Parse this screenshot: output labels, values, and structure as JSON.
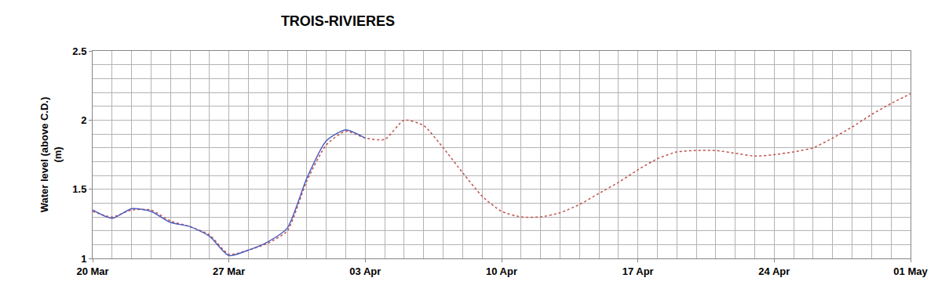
{
  "chart_data": {
    "type": "line",
    "title": "TROIS-RIVIERES",
    "y_label": "Water level (above C.D.)\n(m)",
    "categories": [
      "20 Mar",
      null,
      null,
      null,
      null,
      null,
      null,
      "27 Mar",
      null,
      null,
      null,
      null,
      null,
      null,
      "03 Apr",
      null,
      null,
      null,
      null,
      null,
      null,
      "10 Apr",
      null,
      null,
      null,
      null,
      null,
      null,
      "17 Apr",
      null,
      null,
      null,
      null,
      null,
      null,
      "24 Apr",
      null,
      null,
      null,
      null,
      null,
      null,
      "01 May"
    ],
    "series": [
      {
        "color": "#c0504d",
        "line_style": "dot",
        "values": [
          1.34,
          1.3,
          1.35,
          1.35,
          1.27,
          1.23,
          1.17,
          1.03,
          1.06,
          1.11,
          1.2,
          1.56,
          1.82,
          1.92,
          1.87,
          1.86,
          2.0,
          1.96,
          1.8,
          1.62,
          1.45,
          1.34,
          1.3,
          1.3,
          1.33,
          1.39,
          1.47,
          1.55,
          1.64,
          1.72,
          1.77,
          1.78,
          1.78,
          1.76,
          1.74,
          1.75,
          1.77,
          1.8,
          1.87,
          1.95,
          2.04,
          2.12,
          2.19
        ]
      },
      {
        "color": "#4f5fbf",
        "line_style": "solid",
        "values": [
          1.35,
          1.29,
          1.36,
          1.34,
          1.26,
          1.23,
          1.16,
          1.02,
          1.06,
          1.12,
          1.22,
          1.58,
          1.85,
          1.93,
          1.87,
          null,
          null,
          null,
          null,
          null,
          null,
          null,
          null,
          null,
          null,
          null,
          null,
          null,
          null,
          null,
          null,
          null,
          null,
          null,
          null,
          null,
          null,
          null,
          null,
          null,
          null,
          null,
          null
        ]
      }
    ],
    "ylim": [
      1,
      2.5
    ],
    "yticks": [
      1,
      1.5,
      2,
      2.5
    ],
    "grid": true
  }
}
